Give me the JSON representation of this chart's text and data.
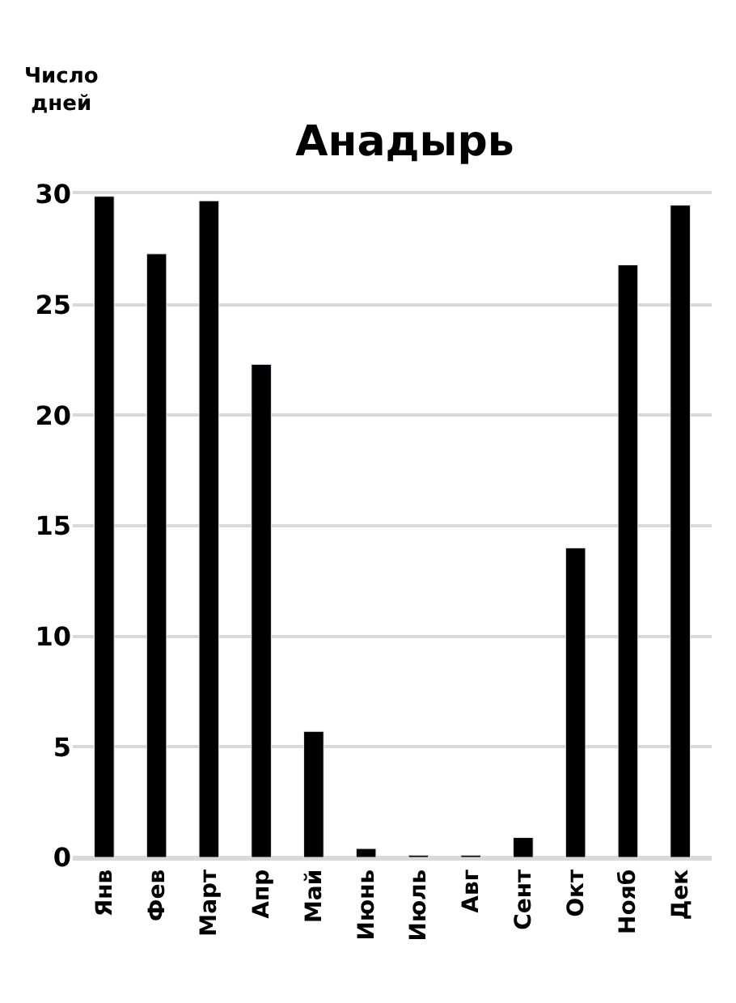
{
  "chart_data": {
    "type": "bar",
    "title": "Анадырь",
    "ylabel": "Число дней",
    "categories": [
      "Янв",
      "Фев",
      "Март",
      "Апр",
      "Май",
      "Июнь",
      "Июль",
      "Авг",
      "Сент",
      "Окт",
      "Нояб",
      "Дек"
    ],
    "values": [
      29.9,
      27.3,
      29.7,
      22.3,
      5.7,
      0.4,
      0.1,
      0.1,
      0.9,
      14.0,
      26.8,
      29.5
    ],
    "color": "#000000",
    "ylim": [
      0,
      30
    ],
    "yticks": [
      0,
      5,
      10,
      15,
      20,
      25,
      30
    ],
    "grid": "y"
  }
}
